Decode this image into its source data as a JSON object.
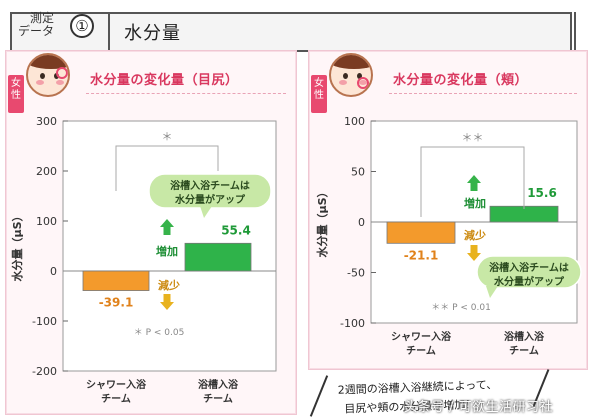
{
  "header": {
    "label_line1": "測定",
    "label_line2": "データ",
    "number": "①",
    "title": "水分量"
  },
  "panels": [
    {
      "female_tag": "女性",
      "title": "水分量の変化量（目尻）",
      "ylabel": "水分量（μS）",
      "significance_mark": "＊",
      "pvalue_note": "＊ P < 0.05",
      "callout": "浴槽入浴チームは\n水分量がアップ",
      "increase_label": "増加",
      "decrease_label": "減少"
    },
    {
      "female_tag": "女性",
      "title": "水分量の変化量（頬）",
      "ylabel": "水分量（μS）",
      "significance_mark": "＊＊",
      "pvalue_note": "＊＊ P < 0.01",
      "callout": "浴槽入浴チームは\n水分量がアップ",
      "increase_label": "増加",
      "decrease_label": "減少"
    }
  ],
  "chart_data": [
    {
      "type": "bar",
      "title": "水分量の変化量（目尻）",
      "ylabel": "水分量（μS）",
      "categories": [
        "シャワー入浴\nチーム",
        "浴槽入浴\nチーム"
      ],
      "values": [
        -39.1,
        55.4
      ],
      "value_labels": [
        "-39.1",
        "55.4"
      ],
      "bar_colors": [
        "#f39a2c",
        "#2fb34a"
      ],
      "ylim": [
        -200,
        300
      ],
      "yticks": [
        -200,
        -100,
        0,
        100,
        200,
        300
      ],
      "ytick_labels": [
        "-200",
        "-100",
        "0",
        "100",
        "200",
        "300"
      ],
      "grid": false
    },
    {
      "type": "bar",
      "title": "水分量の変化量（頬）",
      "ylabel": "水分量（μS）",
      "categories": [
        "シャワー入浴\nチーム",
        "浴槽入浴\nチーム"
      ],
      "values": [
        -21.1,
        15.6
      ],
      "value_labels": [
        "-21.1",
        "15.6"
      ],
      "bar_colors": [
        "#f39a2c",
        "#2fb34a"
      ],
      "ylim": [
        -100,
        100
      ],
      "yticks": [
        -100,
        -50,
        0,
        50,
        100
      ],
      "ytick_labels": [
        "-100",
        "-50",
        "0",
        "50",
        "100"
      ],
      "grid": false
    }
  ],
  "footer": {
    "line1": "2週間の浴槽入浴継続によって、",
    "line2": "目尻や頬の水分量が増加！"
  },
  "watermark": "头条号 / 可欲生活研习社",
  "colors": {
    "accent": "#d9385f",
    "shower_bar": "#f39a2c",
    "bath_bar": "#2fb34a",
    "panel_bg": "#fff6f8"
  }
}
